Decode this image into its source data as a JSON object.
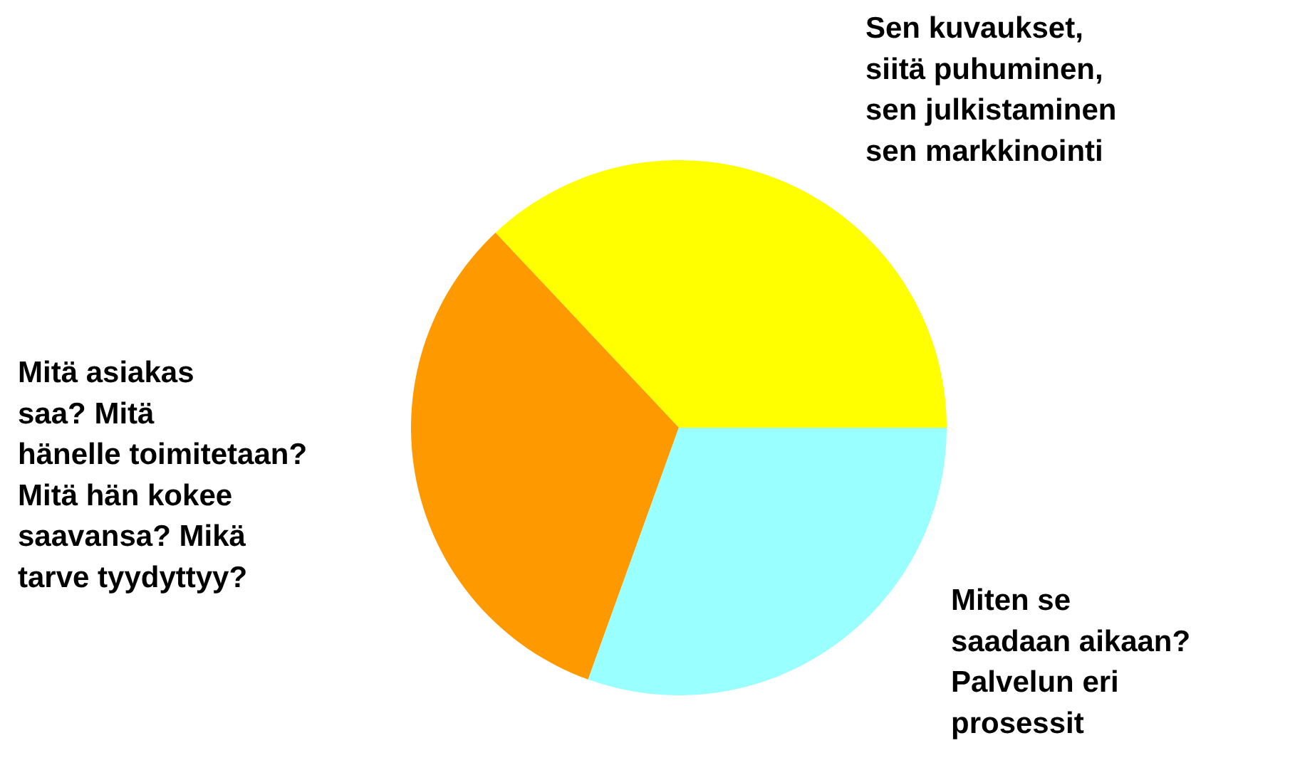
{
  "chart_data": {
    "type": "pie",
    "categories": [
      "Sen kuvaukset,\nsiitä puhuminen,\nsen julkistaminen\nsen markkinointi",
      "Mitä asiakas\nsaa? Mitä\nhänelle toimitetaan?\nMitä hän kokee\nsaavansa? Mikä\ntarve tyydyttyy?",
      "Miten se\nsaadaan aikaan?\nPalvelun eri\nprosessit"
    ],
    "values": [
      37,
      32.5,
      30.5
    ],
    "colors": [
      "#ffff00",
      "#ff9900",
      "#99ffff"
    ]
  }
}
